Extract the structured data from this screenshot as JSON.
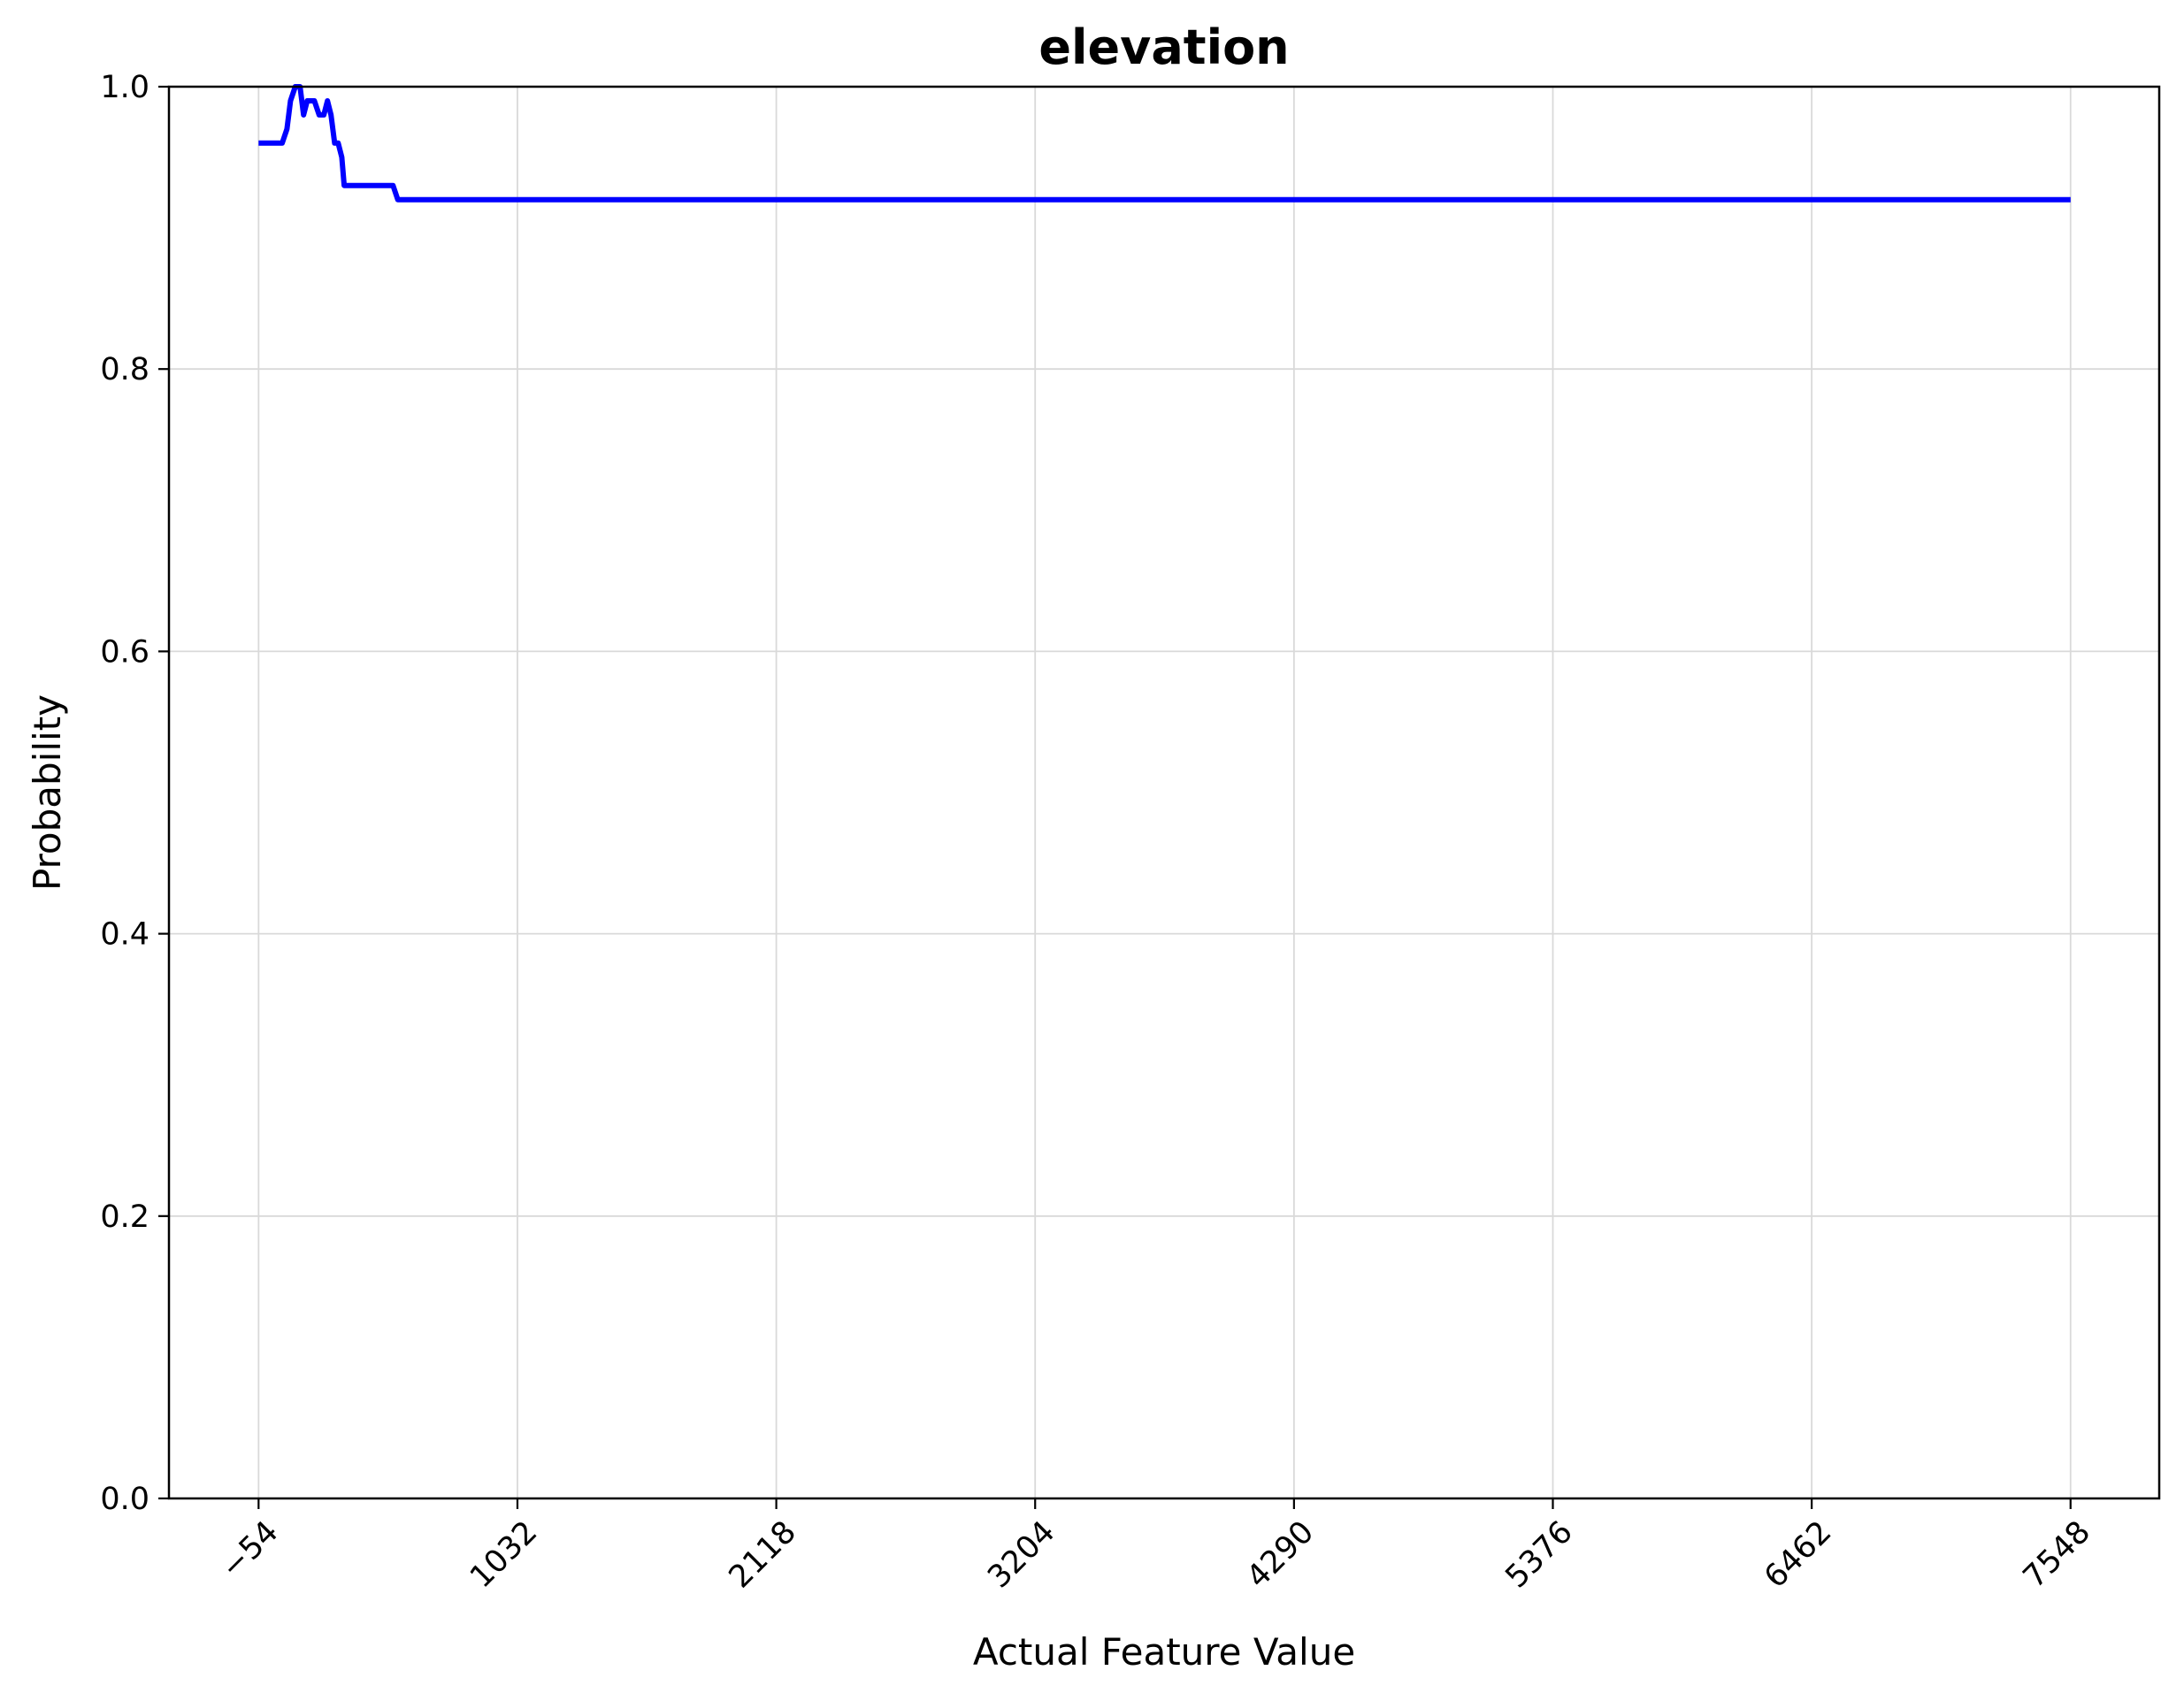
{
  "chart_data": {
    "type": "line",
    "title": "elevation",
    "xlabel": "Actual Feature Value",
    "ylabel": "Probability",
    "xticks": [
      -54,
      1032,
      2118,
      3204,
      4290,
      5376,
      6462,
      7548
    ],
    "xtick_labels": [
      "−54",
      "1032",
      "2118",
      "3204",
      "4290",
      "5376",
      "6462",
      "7548"
    ],
    "yticks": [
      0.0,
      0.2,
      0.4,
      0.6,
      0.8,
      1.0
    ],
    "ytick_labels": [
      "0.0",
      "0.2",
      "0.4",
      "0.6",
      "0.8",
      "1.0"
    ],
    "xlim": [
      -430,
      7920
    ],
    "ylim": [
      0.0,
      1.0
    ],
    "grid": true,
    "series": [
      {
        "color": "#0000ff",
        "x": [
          -54,
          45,
          65,
          80,
          100,
          120,
          135,
          150,
          165,
          180,
          200,
          220,
          235,
          250,
          265,
          280,
          295,
          305,
          320,
          340,
          355,
          510,
          530,
          7548
        ],
        "y": [
          0.96,
          0.96,
          0.97,
          0.99,
          1.0,
          1.0,
          0.98,
          0.99,
          0.99,
          0.99,
          0.98,
          0.98,
          0.99,
          0.98,
          0.96,
          0.96,
          0.95,
          0.93,
          0.93,
          0.93,
          0.93,
          0.93,
          0.92,
          0.92
        ]
      }
    ]
  }
}
